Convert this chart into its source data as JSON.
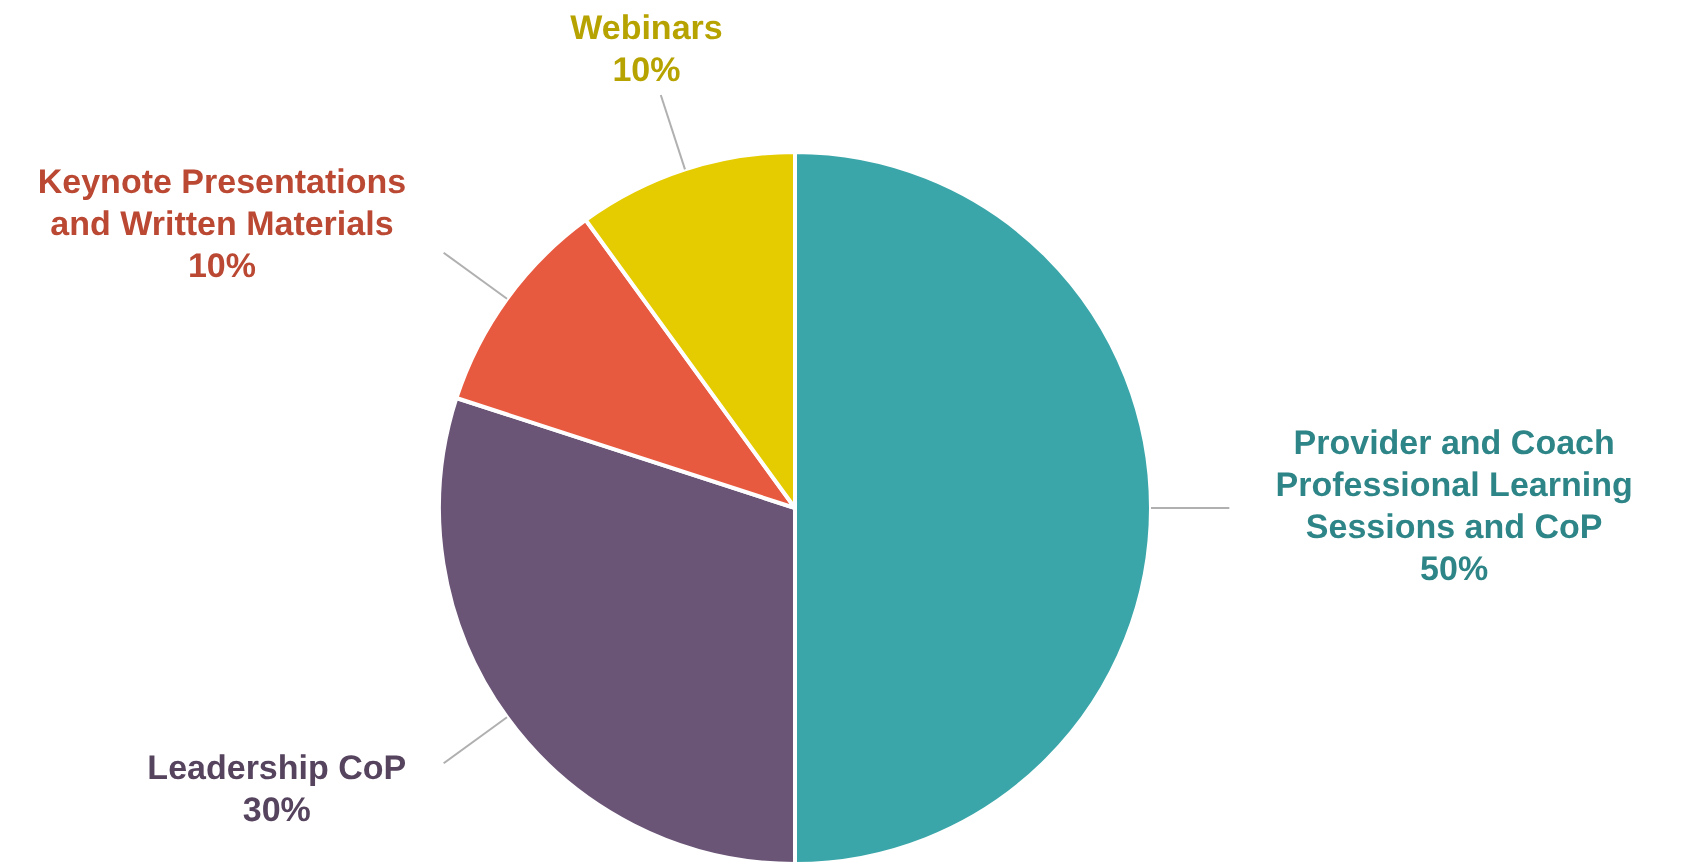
{
  "chart_data": {
    "type": "pie",
    "categories": [
      "Provider and Coach Professional Learning Sessions and CoP",
      "Leadership CoP",
      "Keynote Presentations and Written Materials",
      "Webinars"
    ],
    "values": [
      50,
      30,
      10,
      10
    ],
    "value_labels": [
      "50%",
      "30%",
      "10%",
      "10%"
    ],
    "colors": [
      "#3aa6a9",
      "#6b5577",
      "#e85a3f",
      "#e5cc00"
    ],
    "legend": false
  }
}
